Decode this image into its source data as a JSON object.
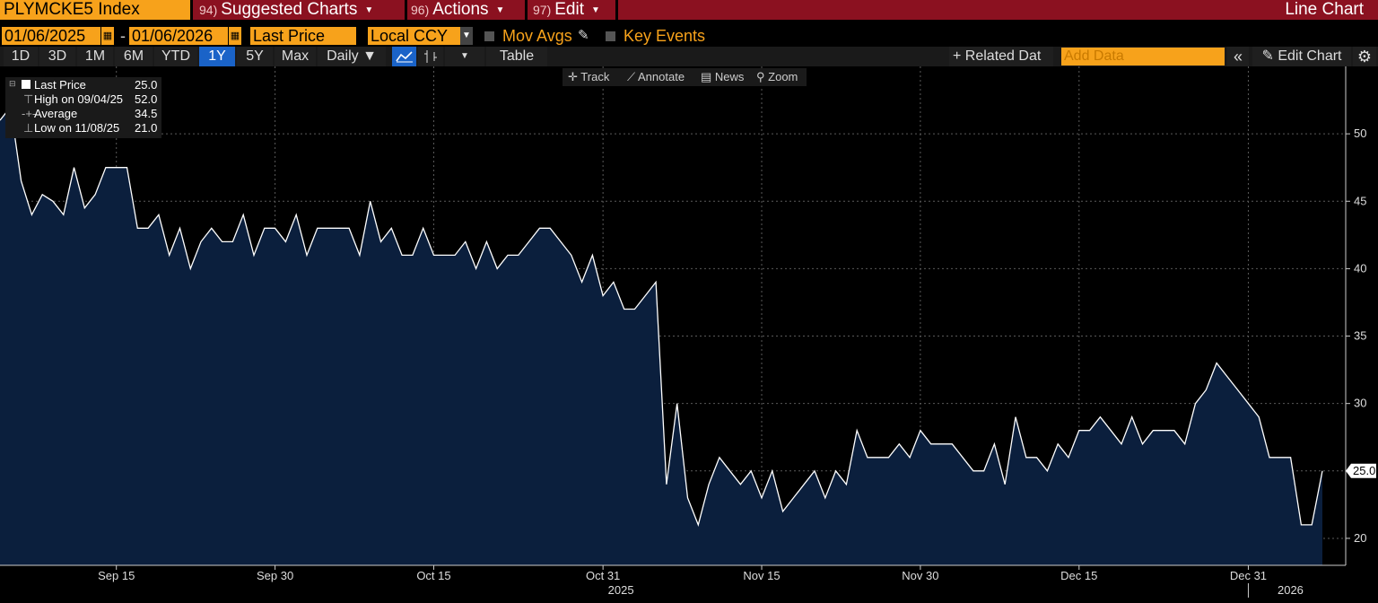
{
  "header": {
    "ticker": "PLYMCKE5 Index",
    "menus": [
      {
        "num": "94)",
        "label": "Suggested Charts"
      },
      {
        "num": "96)",
        "label": "Actions"
      },
      {
        "num": "97)",
        "label": "Edit"
      }
    ],
    "chart_kind": "Line Chart"
  },
  "controls": {
    "start_date": "01/06/2025",
    "end_date": "01/06/2026",
    "date_sep": "-",
    "field": "Last Price",
    "currency": "Local CCY",
    "mov_avgs": "Mov Avgs",
    "key_events": "Key Events"
  },
  "toolbar": {
    "ranges": [
      "1D",
      "3D",
      "1M",
      "6M",
      "YTD",
      "1Y",
      "5Y",
      "Max"
    ],
    "active_range": "1Y",
    "frequency": "Daily",
    "table": "Table",
    "related_data": "Related Dat",
    "add_data_placeholder": "Add Data",
    "edit_chart": "Edit Chart"
  },
  "chart_tools": {
    "track": "Track",
    "annotate": "Annotate",
    "news": "News",
    "zoom": "Zoom"
  },
  "legend": {
    "last_price_label": "Last Price",
    "last_price_value": "25.0",
    "high_label": "High on 09/04/25",
    "high_value": "52.0",
    "avg_label": "Average",
    "avg_value": "34.5",
    "low_label": "Low on 11/08/25",
    "low_value": "21.0"
  },
  "colors": {
    "accent": "#f7a21b",
    "topbar": "#8b1120",
    "line": "#ffffff",
    "fill": "#0b1f3d",
    "active": "#1a63c8"
  },
  "chart_data": {
    "type": "area",
    "ylim": [
      18,
      55
    ],
    "yticks": [
      20,
      25,
      30,
      35,
      40,
      45,
      50
    ],
    "last_value_label": "25.0",
    "xtick_labels": [
      "Sep 15",
      "Sep 30",
      "Oct 15",
      "Oct 31",
      "Nov 15",
      "Nov 30",
      "Dec 15",
      "Dec 31"
    ],
    "year_labels": [
      "2025",
      "2026"
    ],
    "series": [
      {
        "values": [
          51,
          52,
          46.5,
          44,
          45.5,
          45,
          44,
          47.5,
          44.5,
          45.5,
          47.5,
          47.5,
          47.5,
          43,
          43,
          44,
          41,
          43,
          40,
          42,
          43,
          42,
          42,
          44,
          41,
          43,
          43,
          42,
          44,
          41,
          43,
          43,
          43,
          43,
          41,
          45,
          42,
          43,
          41,
          41,
          43,
          41,
          41,
          41,
          42,
          40,
          42,
          40,
          41,
          41,
          42,
          43,
          43,
          42,
          41,
          39,
          41,
          38,
          39,
          37,
          37,
          38,
          39,
          24,
          30,
          23,
          21,
          24,
          26,
          25,
          24,
          25,
          23,
          25,
          22,
          23,
          24,
          25,
          23,
          25,
          24,
          28,
          26,
          26,
          26,
          27,
          26,
          28,
          27,
          27,
          27,
          26,
          25,
          25,
          27,
          24,
          29,
          26,
          26,
          25,
          27,
          26,
          28,
          28,
          29,
          28,
          27,
          29,
          27,
          28,
          28,
          28,
          27,
          30,
          31,
          33,
          32,
          31,
          30,
          29,
          26,
          26,
          26,
          21,
          21,
          25
        ]
      }
    ]
  }
}
